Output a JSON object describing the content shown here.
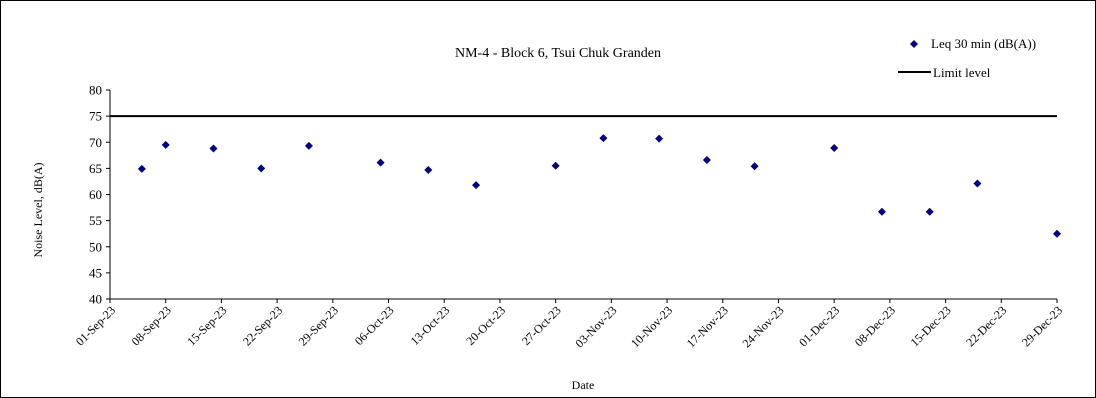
{
  "chart_data": {
    "type": "scatter",
    "title": "NM-4 - Block 6, Tsui Chuk Granden",
    "xlabel": "Date",
    "ylabel": "Noise Level, dB(A)",
    "ylim": [
      40,
      80
    ],
    "yticks": [
      40,
      45,
      50,
      55,
      60,
      65,
      70,
      75,
      80
    ],
    "x_ticks": [
      "01-Sep-23",
      "08-Sep-23",
      "15-Sep-23",
      "22-Sep-23",
      "29-Sep-23",
      "06-Oct-23",
      "13-Oct-23",
      "20-Oct-23",
      "27-Oct-23",
      "03-Nov-23",
      "10-Nov-23",
      "17-Nov-23",
      "24-Nov-23",
      "01-Dec-23",
      "08-Dec-23",
      "15-Dec-23",
      "22-Dec-23",
      "29-Dec-23"
    ],
    "xlim": [
      "2023-09-01",
      "2023-12-29"
    ],
    "grid": false,
    "legend_position": "top-right",
    "series": [
      {
        "name": "Leq 30 min (dB(A))",
        "marker": "diamond",
        "color": "#000080",
        "points": [
          {
            "x": "2023-09-05",
            "y": 64.9
          },
          {
            "x": "2023-09-08",
            "y": 69.5
          },
          {
            "x": "2023-09-14",
            "y": 68.8
          },
          {
            "x": "2023-09-20",
            "y": 65.0
          },
          {
            "x": "2023-09-26",
            "y": 69.3
          },
          {
            "x": "2023-10-05",
            "y": 66.1
          },
          {
            "x": "2023-10-11",
            "y": 64.7
          },
          {
            "x": "2023-10-17",
            "y": 61.8
          },
          {
            "x": "2023-10-27",
            "y": 65.5
          },
          {
            "x": "2023-11-02",
            "y": 70.8
          },
          {
            "x": "2023-11-09",
            "y": 70.7
          },
          {
            "x": "2023-11-15",
            "y": 66.6
          },
          {
            "x": "2023-11-21",
            "y": 65.4
          },
          {
            "x": "2023-12-01",
            "y": 68.9
          },
          {
            "x": "2023-12-07",
            "y": 56.7
          },
          {
            "x": "2023-12-13",
            "y": 56.7
          },
          {
            "x": "2023-12-19",
            "y": 62.1
          },
          {
            "x": "2023-12-29",
            "y": 52.5
          }
        ]
      },
      {
        "name": "Limit level",
        "type": "line",
        "color": "#000000",
        "y": 75
      }
    ]
  }
}
